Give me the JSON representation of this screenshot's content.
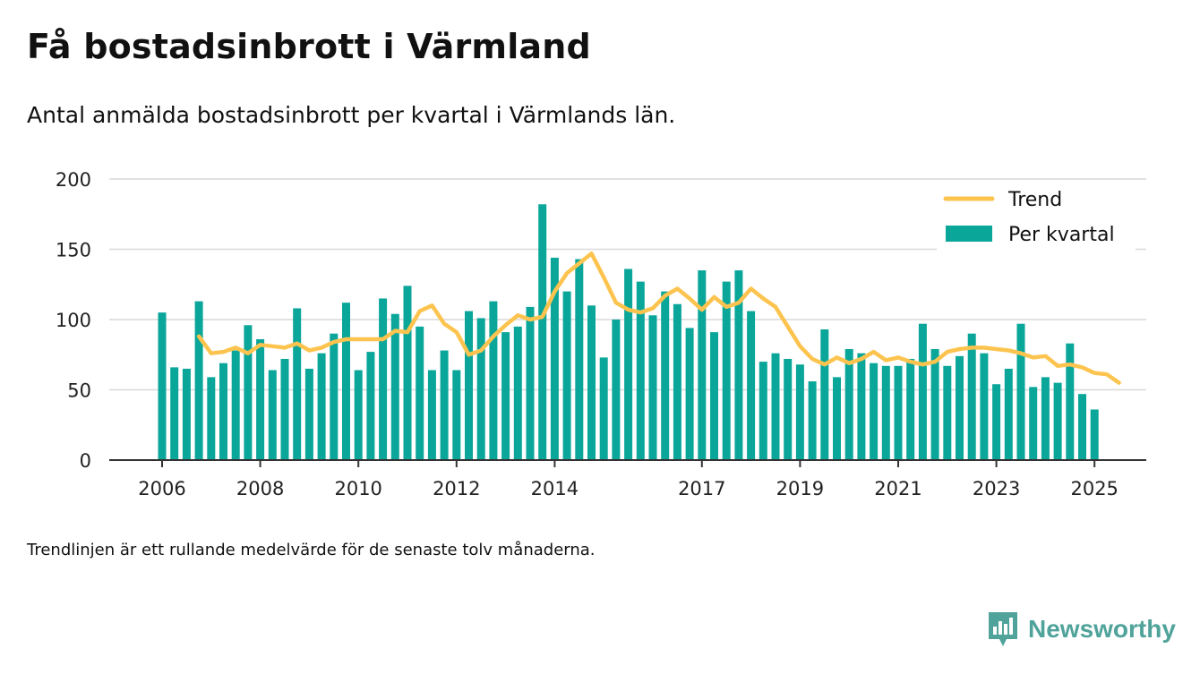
{
  "title": "Få bostadsinbrott i Värmland",
  "subtitle": "Antal anmälda bostadsinbrott per kvartal i Värmlands län.",
  "footnote": "Trendlinjen är ett rullande medelvärde för de senaste tolv månaderna.",
  "brand": {
    "name": "Newsworthy",
    "icon": "newsworthy-logo-icon"
  },
  "colors": {
    "bar": "#0aa69a",
    "trend": "#fcc44f",
    "grid": "#d9d9d9",
    "axis": "#333333"
  },
  "chart_data": {
    "type": "bar",
    "title": "Få bostadsinbrott i Värmland",
    "xlabel": "",
    "ylabel": "",
    "ylim": [
      0,
      200
    ],
    "yticks": [
      0,
      50,
      100,
      150,
      200
    ],
    "xtick_labels": [
      {
        "label": "2006",
        "index": 0
      },
      {
        "label": "2008",
        "index": 8
      },
      {
        "label": "2010",
        "index": 16
      },
      {
        "label": "2012",
        "index": 24
      },
      {
        "label": "2014",
        "index": 32
      },
      {
        "label": "2017",
        "index": 44
      },
      {
        "label": "2019",
        "index": 52
      },
      {
        "label": "2021",
        "index": 60
      },
      {
        "label": "2023",
        "index": 68
      },
      {
        "label": "2025",
        "index": 76
      }
    ],
    "grid": true,
    "legend_position": "top-right",
    "series": [
      {
        "name": "Trend",
        "type": "line",
        "start_index": 3,
        "values": [
          88,
          76,
          77,
          80,
          76,
          82,
          81,
          80,
          83,
          78,
          80,
          84,
          86,
          86,
          86,
          86,
          92,
          91,
          106,
          110,
          97,
          91,
          75,
          78,
          88,
          96,
          103,
          100,
          102,
          120,
          133,
          140,
          147,
          130,
          112,
          107,
          105,
          108,
          117,
          122,
          115,
          107,
          116,
          109,
          112,
          122,
          115,
          109,
          95,
          81,
          72,
          68,
          73,
          69,
          72,
          77,
          71,
          73,
          70,
          68,
          70,
          77,
          79,
          80,
          80,
          79,
          78,
          76,
          73,
          74,
          67,
          68,
          66,
          62,
          61,
          55
        ]
      },
      {
        "name": "Per kvartal",
        "type": "bar",
        "values": [
          105,
          66,
          65,
          113,
          59,
          69,
          78,
          96,
          86,
          64,
          72,
          108,
          65,
          76,
          90,
          112,
          64,
          77,
          115,
          104,
          124,
          95,
          64,
          78,
          64,
          106,
          101,
          113,
          91,
          95,
          109,
          182,
          144,
          120,
          143,
          110,
          73,
          100,
          136,
          127,
          103,
          120,
          111,
          94,
          135,
          91,
          127,
          135,
          106,
          70,
          76,
          72,
          68,
          56,
          93,
          59,
          79,
          76,
          69,
          67,
          67,
          72,
          97,
          79,
          67,
          74,
          90,
          76,
          54,
          65,
          97,
          52,
          59,
          55,
          83,
          47,
          36
        ]
      }
    ]
  }
}
